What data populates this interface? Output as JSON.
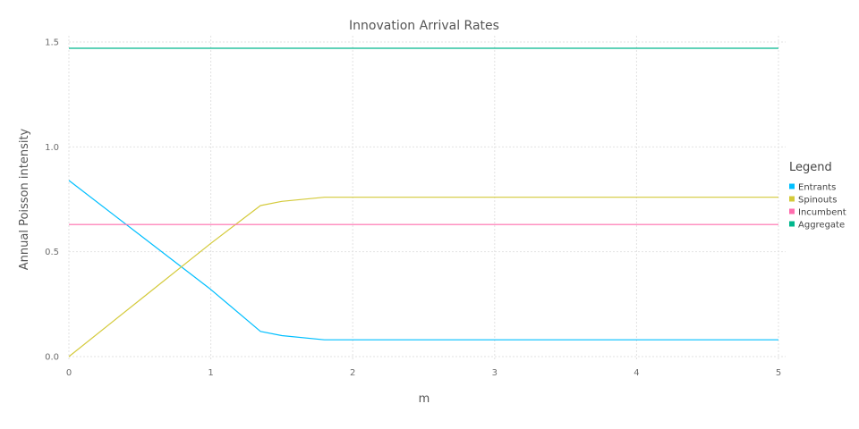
{
  "chart_data": {
    "type": "line",
    "title": "Innovation Arrival Rates",
    "xlabel": "m",
    "ylabel": "Annual Poisson intensity",
    "xlim": [
      0,
      5
    ],
    "ylim": [
      0,
      1.5
    ],
    "x_ticks": [
      "0",
      "1",
      "2",
      "3",
      "4",
      "5"
    ],
    "y_ticks": [
      "0.0",
      "0.5",
      "1.0",
      "1.5"
    ],
    "grid": true,
    "legend_title": "Legend",
    "legend_position": "right",
    "series": [
      {
        "name": "Entrants",
        "color": "#00bfff",
        "x": [
          0,
          0.5,
          1.0,
          1.35,
          1.5,
          1.8,
          2.0,
          3.0,
          4.0,
          5.0
        ],
        "y": [
          0.84,
          0.58,
          0.32,
          0.12,
          0.1,
          0.08,
          0.08,
          0.08,
          0.08,
          0.08
        ]
      },
      {
        "name": "Spinouts",
        "color": "#d4ca3a",
        "x": [
          0,
          0.5,
          1.0,
          1.35,
          1.5,
          1.8,
          2.0,
          3.0,
          4.0,
          5.0
        ],
        "y": [
          0.0,
          0.27,
          0.54,
          0.72,
          0.74,
          0.76,
          0.76,
          0.76,
          0.76,
          0.76
        ]
      },
      {
        "name": "Incumbent",
        "color": "#ff6dae",
        "x": [
          0,
          1,
          2,
          3,
          4,
          5
        ],
        "y": [
          0.63,
          0.63,
          0.63,
          0.63,
          0.63,
          0.63
        ]
      },
      {
        "name": "Aggregate",
        "color": "#00b78d",
        "x": [
          0,
          1,
          2,
          3,
          4,
          5
        ],
        "y": [
          1.47,
          1.47,
          1.47,
          1.47,
          1.47,
          1.47
        ]
      }
    ]
  }
}
